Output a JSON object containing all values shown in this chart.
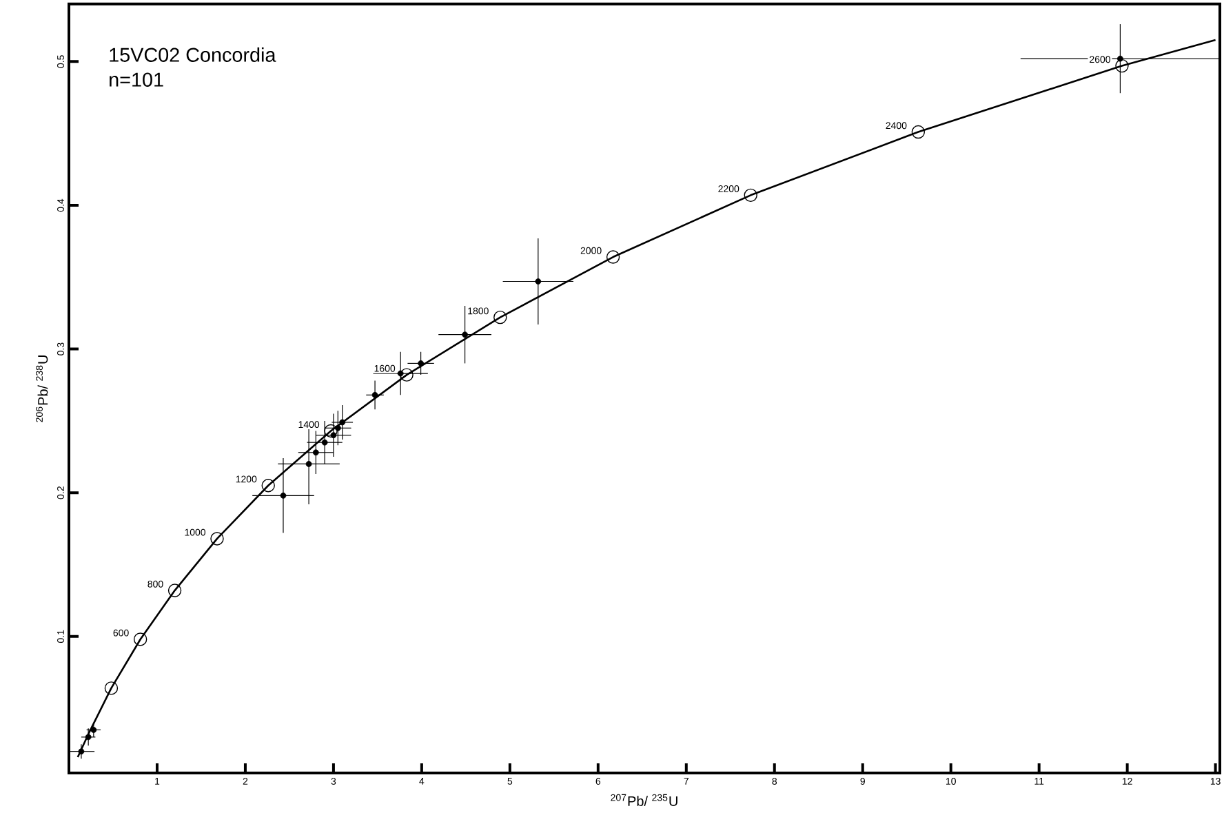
{
  "chart_data": {
    "type": "line",
    "title": "15VC02 Concordia",
    "subtitle": "n=101",
    "xlabel": "$^{207}$Pb/ $^{235}$U",
    "ylabel": "$^{206}$Pb/ $^{238}$U",
    "xlim": [
      0,
      13.05
    ],
    "ylim": [
      0.005,
      0.54
    ],
    "xticks": [
      1,
      2,
      3,
      4,
      5,
      6,
      7,
      8,
      9,
      10,
      11,
      12,
      13
    ],
    "yticks": [
      0.1,
      0.2,
      0.3,
      0.4,
      0.5
    ],
    "grid": false,
    "series": [
      {
        "color": "#000000",
        "marker": "none",
        "line_style": "solid",
        "x": [
          0.1,
          0.22,
          0.48,
          0.81,
          1.2,
          1.68,
          2.26,
          2.97,
          3.83,
          4.89,
          6.17,
          7.73,
          9.63,
          11.94,
          13.0
        ],
        "values": [
          0.016,
          0.032,
          0.064,
          0.098,
          0.132,
          0.168,
          0.205,
          0.243,
          0.282,
          0.322,
          0.364,
          0.407,
          0.451,
          0.497,
          0.515
        ]
      },
      {
        "type": "scatter",
        "color": "#000000",
        "marker": "circle",
        "x": [
          0.48,
          0.81,
          1.2,
          1.68,
          2.26,
          2.97,
          3.83,
          4.89,
          6.17,
          7.73,
          9.63,
          11.94
        ],
        "values": [
          0.064,
          0.098,
          0.132,
          0.168,
          0.205,
          0.243,
          0.282,
          0.322,
          0.364,
          0.407,
          0.451,
          0.497
        ]
      },
      {
        "type": "scatter",
        "color": "#000000",
        "x": [
          0.14,
          0.22,
          0.28,
          2.43,
          2.72,
          2.8,
          2.9,
          3.0,
          3.05,
          3.1,
          3.47,
          3.76,
          3.99,
          4.49,
          5.32,
          11.92
        ],
        "values": [
          0.02,
          0.03,
          0.035,
          0.198,
          0.22,
          0.228,
          0.235,
          0.24,
          0.245,
          0.249,
          0.268,
          0.283,
          0.29,
          0.31,
          0.347,
          0.502
        ],
        "xerrors": [
          0.15,
          0.08,
          0.08,
          0.35,
          0.35,
          0.2,
          0.2,
          0.2,
          0.15,
          0.12,
          0.1,
          0.31,
          0.15,
          0.3,
          0.4,
          1.13
        ],
        "errors": [
          0.005,
          0.006,
          0.005,
          0.026,
          0.028,
          0.015,
          0.015,
          0.015,
          0.012,
          0.012,
          0.01,
          0.015,
          0.008,
          0.02,
          0.03,
          0.024
        ]
      }
    ],
    "annotations": [
      {
        "text": "600",
        "x": 0.81,
        "y": 0.098
      },
      {
        "text": "800",
        "x": 1.2,
        "y": 0.132
      },
      {
        "text": "1000",
        "x": 1.68,
        "y": 0.168
      },
      {
        "text": "1200",
        "x": 2.26,
        "y": 0.205
      },
      {
        "text": "1400",
        "x": 2.97,
        "y": 0.243
      },
      {
        "text": "1600",
        "x": 3.83,
        "y": 0.282
      },
      {
        "text": "1800",
        "x": 4.89,
        "y": 0.322
      },
      {
        "text": "2000",
        "x": 6.17,
        "y": 0.364
      },
      {
        "text": "2200",
        "x": 7.73,
        "y": 0.407
      },
      {
        "text": "2400",
        "x": 9.63,
        "y": 0.451
      },
      {
        "text": "2600",
        "x": 11.94,
        "y": 0.497
      }
    ]
  }
}
